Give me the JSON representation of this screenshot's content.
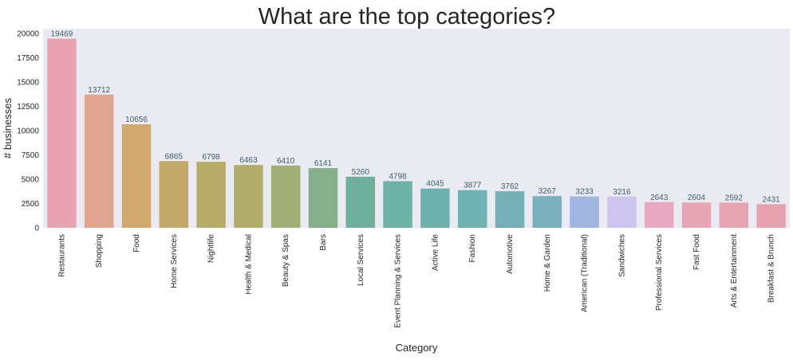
{
  "chart_data": {
    "type": "bar",
    "title": "What are the top categories?",
    "xlabel": "Category",
    "ylabel": "# businesses",
    "ylim": [
      0,
      20500
    ],
    "yticks": [
      0,
      2500,
      5000,
      7500,
      10000,
      12500,
      15000,
      17500,
      20000
    ],
    "grid": false,
    "categories": [
      "Restaurants",
      "Shopping",
      "Food",
      "Home Services",
      "Nightlife",
      "Health & Medical",
      "Beauty & Spas",
      "Bars",
      "Local Services",
      "Event Planning & Services",
      "Active Life",
      "Fashion",
      "Automotive",
      "Home & Garden",
      "American (Traditional)",
      "Sandwiches",
      "Professional Services",
      "Fast Food",
      "Arts & Entertainment",
      "Breakfast & Brunch"
    ],
    "values": [
      19469,
      13712,
      10656,
      6865,
      6798,
      6463,
      6410,
      6141,
      5260,
      4798,
      4045,
      3877,
      3762,
      3267,
      3233,
      3216,
      2643,
      2604,
      2592,
      2431
    ],
    "labels": [
      "19469",
      "13712",
      "10656",
      "6865",
      "6798",
      "6463",
      "6410",
      "6141",
      "5260",
      "4798",
      "4045",
      "3877",
      "3762",
      "3267",
      "3233",
      "3216",
      "2643",
      "2604",
      "2592",
      "2431"
    ],
    "colors": [
      "#e7a3b1",
      "#e0a590",
      "#d2a86f",
      "#c2a96a",
      "#b7ab6a",
      "#b0ad6b",
      "#a2ae78",
      "#86b08a",
      "#6eb09b",
      "#6eb1a6",
      "#6eb1ac",
      "#70b1b1",
      "#74b0b6",
      "#79b0bc",
      "#a0b6e1",
      "#cdc4ef",
      "#e6a9bf",
      "#e7a6b6",
      "#e7a4b2",
      "#e7a2af"
    ],
    "background": "#eaeaf2"
  }
}
